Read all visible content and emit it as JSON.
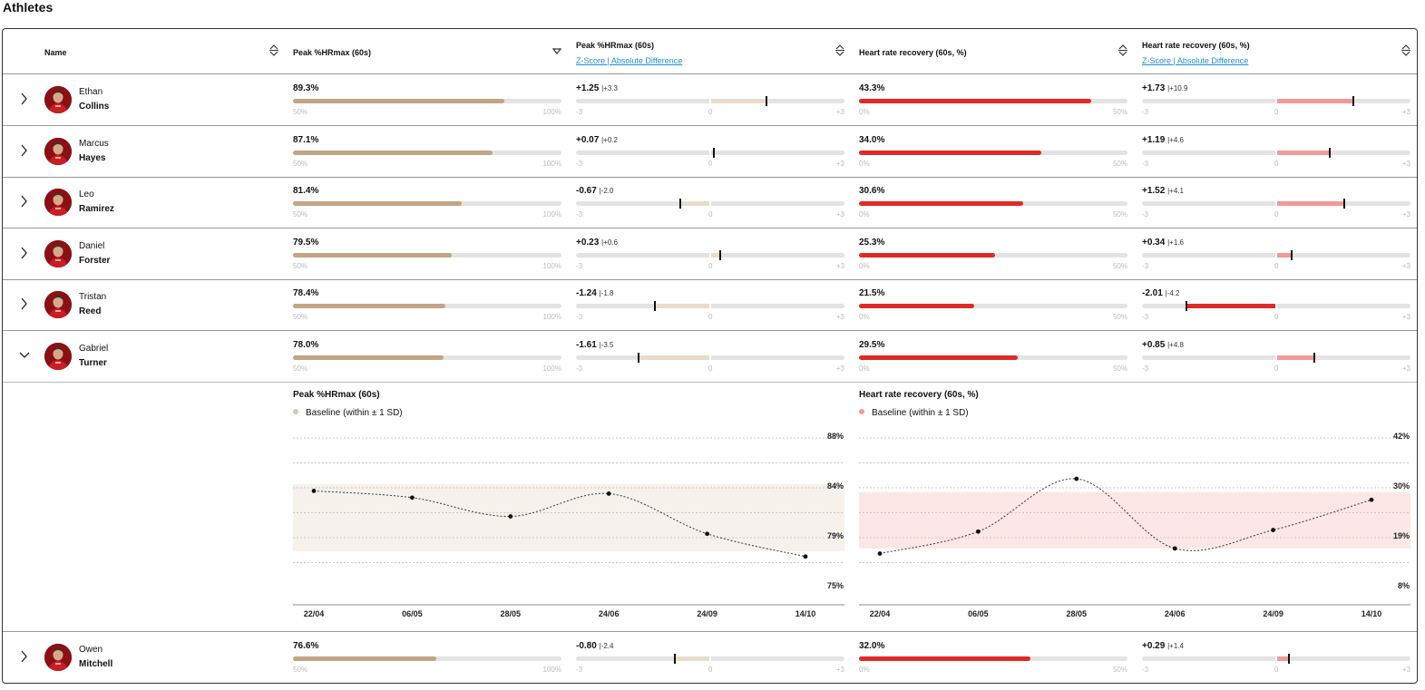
{
  "page": {
    "title": "Athletes"
  },
  "columns": {
    "name": "Name",
    "peak": "Peak %HRmax (60s)",
    "peak_z": "Peak %HRmax (60s)",
    "peak_z_sub": "Z-Score | Absolute Difference",
    "hrr": "Heart rate recovery (60s, %)",
    "hrr_z": "Heart rate recovery (60s, %)",
    "hrr_z_sub": "Z-Score | Absolute Difference"
  },
  "scales": {
    "peak": {
      "min_label": "50%",
      "max_label": "100%",
      "min": 50,
      "max": 100
    },
    "z": {
      "min_label": "-3",
      "mid_label": "0",
      "max_label": "+3",
      "min": -3,
      "max": 3
    },
    "hrr": {
      "min_label": "0%",
      "max_label": "50%",
      "min": 0,
      "max": 50
    }
  },
  "colors": {
    "peak_fill": "#c2a584",
    "peak_band": "#e9dccb",
    "hrr_fill": "#e02a25",
    "hrr_band": "#f29a9a",
    "link": "#1e8bd6"
  },
  "athletes": [
    {
      "first": "Ethan",
      "last": "Collins",
      "expanded": false,
      "peak": "89.3%",
      "peak_value": 89.3,
      "peak_z": "+1.25",
      "peak_z_value": 1.25,
      "peak_diff": "+3.3",
      "hrr": "43.3%",
      "hrr_value": 43.3,
      "hrr_z": "+1.73",
      "hrr_z_value": 1.73,
      "hrr_diff": "+10.9"
    },
    {
      "first": "Marcus",
      "last": "Hayes",
      "expanded": false,
      "peak": "87.1%",
      "peak_value": 87.1,
      "peak_z": "+0.07",
      "peak_z_value": 0.07,
      "peak_diff": "+0.2",
      "hrr": "34.0%",
      "hrr_value": 34.0,
      "hrr_z": "+1.19",
      "hrr_z_value": 1.19,
      "hrr_diff": "+4.6"
    },
    {
      "first": "Leo",
      "last": "Ramirez",
      "expanded": false,
      "peak": "81.4%",
      "peak_value": 81.4,
      "peak_z": "-0.67",
      "peak_z_value": -0.67,
      "peak_diff": "-2.0",
      "hrr": "30.6%",
      "hrr_value": 30.6,
      "hrr_z": "+1.52",
      "hrr_z_value": 1.52,
      "hrr_diff": "+4.1"
    },
    {
      "first": "Daniel",
      "last": "Forster",
      "expanded": false,
      "peak": "79.5%",
      "peak_value": 79.5,
      "peak_z": "+0.23",
      "peak_z_value": 0.23,
      "peak_diff": "+0.6",
      "hrr": "25.3%",
      "hrr_value": 25.3,
      "hrr_z": "+0.34",
      "hrr_z_value": 0.34,
      "hrr_diff": "+1.6"
    },
    {
      "first": "Tristan",
      "last": "Reed",
      "expanded": false,
      "peak": "78.4%",
      "peak_value": 78.4,
      "peak_z": "-1.24",
      "peak_z_value": -1.24,
      "peak_diff": "-1.8",
      "hrr": "21.5%",
      "hrr_value": 21.5,
      "hrr_z": "-2.01",
      "hrr_z_value": -2.01,
      "hrr_diff": "-4.2"
    },
    {
      "first": "Gabriel",
      "last": "Turner",
      "expanded": true,
      "peak": "78.0%",
      "peak_value": 78.0,
      "peak_z": "-1.61",
      "peak_z_value": -1.61,
      "peak_diff": "-3.5",
      "hrr": "29.5%",
      "hrr_value": 29.5,
      "hrr_z": "+0.85",
      "hrr_z_value": 0.85,
      "hrr_diff": "+4.8"
    },
    {
      "first": "Owen",
      "last": "Mitchell",
      "expanded": false,
      "peak": "76.6%",
      "peak_value": 76.6,
      "peak_z": "-0.80",
      "peak_z_value": -0.8,
      "peak_diff": "-2.4",
      "hrr": "32.0%",
      "hrr_value": 32.0,
      "hrr_z": "+0.29",
      "hrr_z_value": 0.29,
      "hrr_diff": "+1.4"
    }
  ],
  "chart_data": [
    {
      "type": "line",
      "title": "Peak %HRmax (60s)",
      "legend": "Baseline (within ± 1 SD)",
      "x": [
        "22/04",
        "06/05",
        "28/05",
        "24/06",
        "24/09",
        "14/10"
      ],
      "y": [
        83.5,
        83.0,
        81.6,
        83.3,
        80.3,
        78.6
      ],
      "ylim": [
        75,
        88
      ],
      "y_ticks": [
        "88%",
        "84%",
        "79%",
        "75%"
      ],
      "y_tick_values": [
        88,
        84,
        79,
        75
      ],
      "baseline_band": [
        79,
        84
      ],
      "band_color": "#f7f1ec"
    },
    {
      "type": "line",
      "title": "Heart rate recovery (60s, %)",
      "legend": "Baseline (within ± 1 SD)",
      "x": [
        "22/04",
        "06/05",
        "28/05",
        "24/06",
        "24/09",
        "14/10"
      ],
      "y": [
        18.0,
        22.3,
        32.6,
        19.0,
        22.6,
        28.5
      ],
      "ylim": [
        8,
        42
      ],
      "y_ticks": [
        "42%",
        "30%",
        "19%",
        "8%"
      ],
      "y_tick_values": [
        42,
        30,
        19,
        8
      ],
      "baseline_band": [
        19,
        30
      ],
      "band_color": "#fde6e6"
    }
  ]
}
